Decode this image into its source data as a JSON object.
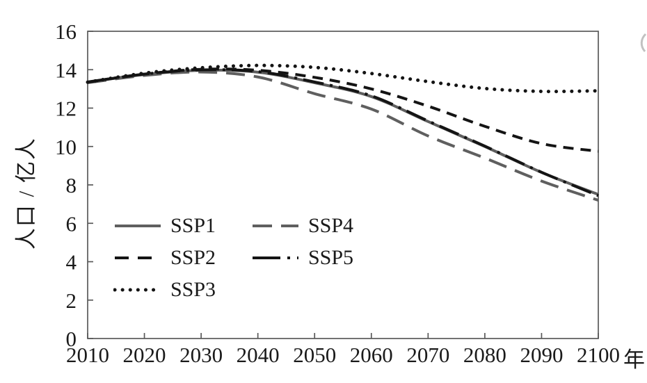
{
  "chart_data": {
    "type": "line",
    "title": "",
    "ylabel": "人口 / 亿人",
    "x_unit_label": "年",
    "x": [
      2010,
      2020,
      2030,
      2040,
      2050,
      2060,
      2070,
      2080,
      2090,
      2100
    ],
    "x_ticks": [
      2010,
      2020,
      2030,
      2040,
      2050,
      2060,
      2070,
      2080,
      2090,
      2100
    ],
    "y_ticks": [
      0,
      2,
      4,
      6,
      8,
      10,
      12,
      14,
      16
    ],
    "xlim": [
      2010,
      2100
    ],
    "ylim": [
      0,
      16
    ],
    "grid": false,
    "legend_position": "inside-lower-left-two-columns",
    "axis_color": "#595959",
    "text_color": "#1a1a1a",
    "series": [
      {
        "name": "SSP1",
        "color": "#5f5f5f",
        "style": "solid",
        "values": [
          13.35,
          13.75,
          13.97,
          13.87,
          13.32,
          12.6,
          11.3,
          10.0,
          8.65,
          7.5
        ]
      },
      {
        "name": "SSP2",
        "color": "#141414",
        "style": "dashed",
        "values": [
          13.35,
          13.77,
          14.02,
          13.97,
          13.6,
          13.0,
          12.1,
          11.05,
          10.15,
          9.75
        ]
      },
      {
        "name": "SSP3",
        "color": "#141414",
        "style": "dotted",
        "values": [
          13.35,
          13.82,
          14.1,
          14.22,
          14.12,
          13.8,
          13.38,
          13.02,
          12.87,
          12.9
        ]
      },
      {
        "name": "SSP4",
        "color": "#5f5f5f",
        "style": "long-dash",
        "values": [
          13.32,
          13.7,
          13.88,
          13.62,
          12.75,
          11.95,
          10.55,
          9.4,
          8.2,
          7.2
        ]
      },
      {
        "name": "SSP5",
        "color": "#141414",
        "style": "dash-dot",
        "values": [
          13.36,
          13.77,
          13.99,
          13.9,
          13.36,
          12.64,
          11.33,
          10.02,
          8.66,
          7.44
        ]
      }
    ]
  }
}
